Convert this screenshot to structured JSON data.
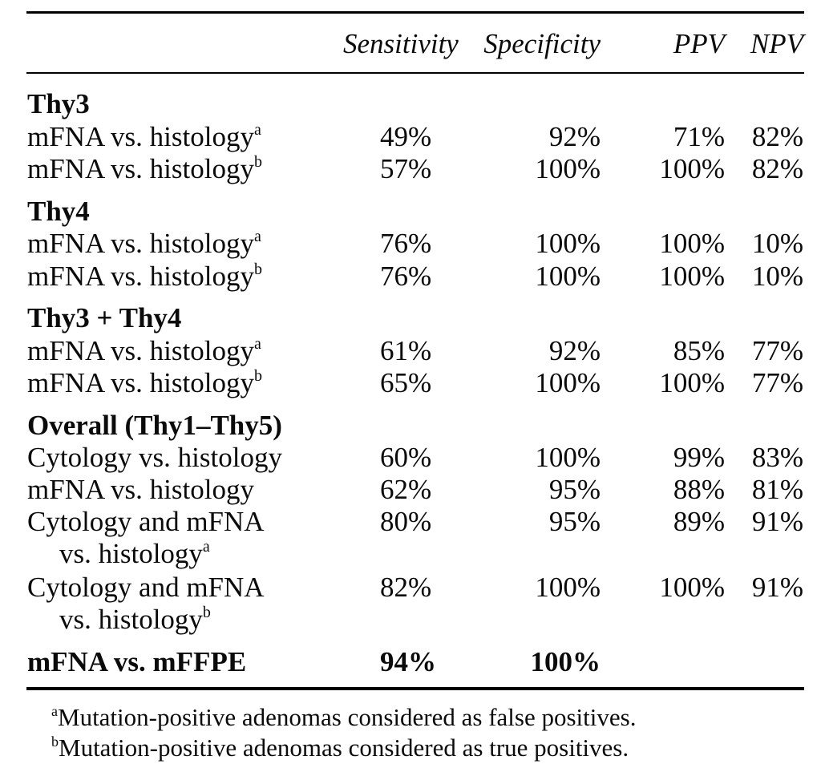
{
  "headers": {
    "sensitivity": "Sensitivity",
    "specificity": "Specificity",
    "ppv": "PPV",
    "npv": "NPV"
  },
  "groups": {
    "thy3": "Thy3",
    "thy4": "Thy4",
    "thy34": "Thy3 + Thy4",
    "overall": "Overall (Thy1–Thy5)"
  },
  "rows": [
    {
      "label": "mFNA vs. histology",
      "sup": "a",
      "sens": "49%",
      "spec": "92%",
      "ppv": "71%",
      "npv": "82%"
    },
    {
      "label": "mFNA vs. histology",
      "sup": "b",
      "sens": "57%",
      "spec": "100%",
      "ppv": "100%",
      "npv": "82%"
    },
    {
      "label": "mFNA vs. histology",
      "sup": "a",
      "sens": "76%",
      "spec": "100%",
      "ppv": "100%",
      "npv": "10%"
    },
    {
      "label": "mFNA vs. histology",
      "sup": "b",
      "sens": "76%",
      "spec": "100%",
      "ppv": "100%",
      "npv": "10%"
    },
    {
      "label": "mFNA vs. histology",
      "sup": "a",
      "sens": "61%",
      "spec": "92%",
      "ppv": "85%",
      "npv": "77%"
    },
    {
      "label": "mFNA vs. histology",
      "sup": "b",
      "sens": "65%",
      "spec": "100%",
      "ppv": "100%",
      "npv": "77%"
    },
    {
      "label": "Cytology vs. histology",
      "sens": "60%",
      "spec": "100%",
      "ppv": "99%",
      "npv": "83%"
    },
    {
      "label": "mFNA vs. histology",
      "sens": "62%",
      "spec": "95%",
      "ppv": "88%",
      "npv": "81%"
    },
    {
      "label": "Cytology and mFNA",
      "label2": "vs. histology",
      "sup": "a",
      "sens": "80%",
      "spec": "95%",
      "ppv": "89%",
      "npv": "91%"
    },
    {
      "label": "Cytology and mFNA",
      "label2": "vs. histology",
      "sup": "b",
      "sens": "82%",
      "spec": "100%",
      "ppv": "100%",
      "npv": "91%"
    },
    {
      "label": "mFNA vs. mFFPE",
      "sens": "94%",
      "spec": "100%"
    }
  ],
  "footnotes": [
    {
      "mark": "a",
      "text": "Mutation-positive adenomas considered as false positives."
    },
    {
      "mark": "b",
      "text": "Mutation-positive adenomas considered as true positives."
    }
  ]
}
